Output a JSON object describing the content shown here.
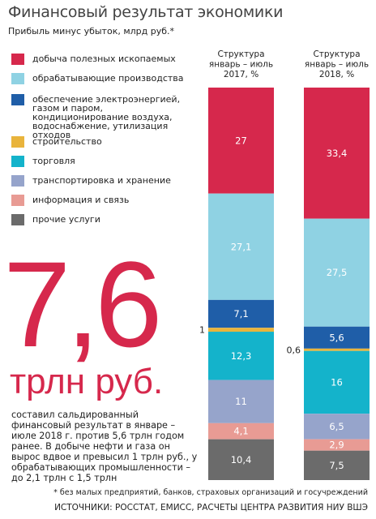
{
  "chart_data": {
    "type": "stacked_bar_100",
    "title": "Финансовый результат экономики",
    "subtitle": "Прибыль минус убыток, млрд руб.*",
    "categories": [
      [
        "Структура",
        "январь – июль",
        "2017, %"
      ],
      [
        "Структура",
        "январь – июль",
        "2018, %"
      ]
    ],
    "ylim": [
      0,
      100
    ],
    "series": [
      {
        "name": "добыча полезных ископаемых",
        "color": "#d6284c",
        "values": [
          27,
          33.4
        ],
        "value_labels": [
          "27",
          "33,4"
        ]
      },
      {
        "name": "обрабатывающие производства",
        "color": "#8fd2e3",
        "values": [
          27.1,
          27.5
        ],
        "value_labels": [
          "27,1",
          "27,5"
        ]
      },
      {
        "name": "обеспечение электроэнергией, газом и паром, кондиционирование воздуха, водоснабжение, утилизация отходов",
        "color": "#1f5ea8",
        "values": [
          7.1,
          5.6
        ],
        "value_labels": [
          "7,1",
          "5,6"
        ]
      },
      {
        "name": "строительство",
        "color": "#e9b43c",
        "values": [
          1,
          0.6
        ],
        "value_labels": [
          "1",
          "0,6"
        ]
      },
      {
        "name": "торговля",
        "color": "#14b3cb",
        "values": [
          12.3,
          16
        ],
        "value_labels": [
          "12,3",
          "16"
        ]
      },
      {
        "name": "транспортировка и хранение",
        "color": "#96a4cb",
        "values": [
          11,
          6.5
        ],
        "value_labels": [
          "11",
          "6,5"
        ]
      },
      {
        "name": "информация и связь",
        "color": "#e89b94",
        "values": [
          4.1,
          2.9
        ],
        "value_labels": [
          "4,1",
          "2,9"
        ]
      },
      {
        "name": "прочие услуги",
        "color": "#6b6b6b",
        "values": [
          10.4,
          7.5
        ],
        "value_labels": [
          "10,4",
          "7,5"
        ]
      }
    ],
    "annotations": {
      "big_number": "7,6",
      "big_unit": "трлн руб.",
      "text": "составил сальдированный финансовый результат в январе – июле 2018 г. против 5,6 трлн годом ранее. В добыче нефти и газа он вырос вдвое и превысил 1 трлн руб., у обрабатывающих промышленности – до 2,1 трлн с 1,5 трлн",
      "footnote": "* без малых предприятий, банков, страховых организаций и госучреждений",
      "source": "ИСТОЧНИКИ: РОССТАТ, ЕМИСС, РАСЧЕТЫ ЦЕНТРА РАЗВИТИЯ НИУ ВШЭ"
    }
  }
}
